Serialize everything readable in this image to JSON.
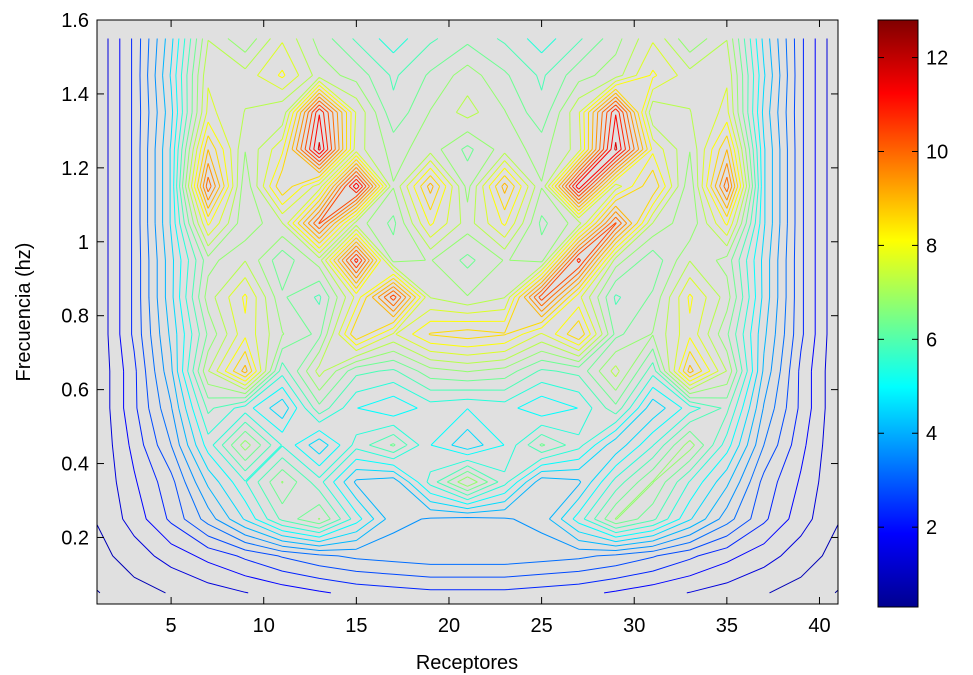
{
  "chart_data": {
    "type": "heatmap",
    "variant": "contour",
    "title": "",
    "xlabel": "Receptores",
    "ylabel": "Frecuencia (hz)",
    "xlim": [
      1,
      41
    ],
    "ylim": [
      0.02,
      1.6
    ],
    "x_ticks": [
      5,
      10,
      15,
      20,
      25,
      30,
      35,
      40
    ],
    "y_ticks": [
      0.2,
      0.4,
      0.6,
      0.8,
      1,
      1.2,
      1.4,
      1.6
    ],
    "y_tick_labels": [
      "0.2",
      "0.4",
      "0.6",
      "0.8",
      "1",
      "1.2",
      "1.4",
      "1.6"
    ],
    "grid": false,
    "background_color": "#e0e0e0",
    "colormap": "jet",
    "colorbar": {
      "range": [
        0.3,
        12.8
      ],
      "ticks": [
        2,
        4,
        6,
        8,
        10,
        12
      ]
    },
    "z_grid": {
      "description": "contour levels of amplitude over receptor index and frequency (approximate)",
      "x": [
        1,
        3,
        5,
        7,
        9,
        11,
        13,
        15,
        17,
        19,
        21,
        23,
        25,
        27,
        29,
        31,
        33,
        35,
        37,
        39,
        41
      ],
      "y": [
        0.05,
        0.15,
        0.25,
        0.35,
        0.45,
        0.55,
        0.65,
        0.75,
        0.85,
        0.95,
        1.05,
        1.15,
        1.25,
        1.35,
        1.45,
        1.55
      ],
      "z": [
        [
          0.5,
          0.8,
          1.0,
          1.2,
          1.4,
          1.6,
          1.8,
          2.0,
          2.1,
          2.2,
          2.2,
          2.2,
          2.1,
          2.0,
          1.8,
          1.6,
          1.4,
          1.2,
          1.0,
          0.8,
          0.5
        ],
        [
          0.8,
          1.2,
          1.6,
          2.0,
          2.4,
          2.8,
          3.1,
          3.3,
          3.4,
          3.5,
          3.5,
          3.5,
          3.4,
          3.3,
          3.1,
          2.8,
          2.4,
          2.0,
          1.6,
          1.2,
          0.8
        ],
        [
          1.0,
          1.6,
          2.4,
          3.4,
          4.6,
          6.0,
          6.8,
          5.2,
          3.8,
          3.6,
          3.5,
          3.6,
          3.8,
          5.2,
          6.8,
          6.0,
          4.6,
          3.4,
          2.4,
          1.6,
          1.0
        ],
        [
          1.0,
          1.8,
          2.6,
          4.2,
          5.4,
          6.8,
          5.6,
          4.0,
          3.8,
          5.6,
          7.2,
          5.6,
          3.8,
          4.0,
          5.6,
          6.8,
          5.4,
          4.2,
          2.6,
          1.8,
          1.0
        ],
        [
          1.0,
          2.0,
          3.2,
          5.2,
          7.0,
          5.4,
          4.2,
          5.6,
          6.4,
          5.0,
          4.2,
          5.0,
          6.4,
          5.6,
          4.2,
          5.4,
          7.0,
          5.2,
          3.2,
          2.0,
          1.0
        ],
        [
          1.0,
          2.2,
          3.6,
          6.0,
          5.2,
          4.2,
          6.2,
          5.0,
          4.6,
          5.2,
          5.0,
          5.2,
          4.6,
          5.0,
          6.2,
          4.2,
          5.2,
          6.0,
          3.6,
          2.2,
          1.0
        ],
        [
          1.0,
          2.2,
          4.0,
          7.2,
          9.2,
          5.6,
          7.4,
          6.0,
          5.8,
          6.6,
          6.8,
          6.6,
          5.8,
          6.0,
          7.4,
          5.6,
          9.2,
          7.2,
          4.0,
          2.2,
          1.0
        ],
        [
          1.0,
          2.4,
          4.2,
          6.4,
          8.0,
          6.8,
          6.2,
          9.0,
          7.6,
          8.6,
          8.8,
          8.6,
          7.6,
          9.0,
          6.2,
          6.8,
          8.0,
          6.4,
          4.2,
          2.4,
          1.0
        ],
        [
          1.0,
          2.4,
          4.4,
          7.0,
          8.2,
          6.4,
          5.8,
          7.8,
          10.6,
          7.2,
          6.8,
          7.2,
          10.6,
          7.8,
          5.8,
          6.4,
          8.2,
          7.0,
          4.4,
          2.4,
          1.0
        ],
        [
          1.0,
          2.4,
          4.4,
          6.6,
          7.2,
          6.0,
          7.0,
          11.0,
          6.6,
          6.8,
          6.2,
          6.8,
          6.6,
          11.0,
          7.0,
          6.0,
          7.2,
          6.6,
          4.4,
          2.4,
          1.0
        ],
        [
          1.0,
          2.4,
          4.6,
          8.2,
          6.4,
          7.2,
          10.4,
          7.0,
          6.2,
          8.2,
          7.0,
          8.2,
          6.2,
          7.0,
          10.4,
          7.2,
          6.4,
          8.2,
          4.6,
          2.4,
          1.0
        ],
        [
          1.0,
          2.4,
          4.6,
          10.2,
          6.4,
          9.0,
          7.4,
          11.6,
          6.8,
          9.2,
          6.6,
          9.2,
          6.8,
          11.6,
          7.4,
          9.0,
          6.4,
          10.2,
          4.6,
          2.4,
          1.0
        ],
        [
          1.0,
          2.4,
          4.6,
          9.0,
          6.8,
          8.0,
          11.8,
          7.4,
          6.6,
          7.0,
          6.2,
          7.0,
          6.6,
          7.4,
          11.8,
          8.0,
          6.8,
          9.0,
          4.6,
          2.4,
          1.0
        ],
        [
          1.0,
          2.4,
          4.4,
          7.8,
          7.2,
          6.8,
          11.2,
          7.6,
          6.0,
          6.8,
          7.4,
          6.8,
          6.0,
          7.6,
          11.2,
          6.8,
          7.2,
          7.8,
          4.4,
          2.4,
          1.0
        ],
        [
          1.0,
          2.4,
          4.6,
          7.6,
          7.4,
          8.2,
          7.0,
          6.6,
          5.8,
          6.4,
          7.0,
          6.4,
          5.8,
          6.6,
          7.0,
          8.2,
          7.4,
          7.6,
          4.6,
          2.4,
          1.0
        ],
        [
          1.0,
          2.4,
          4.4,
          7.2,
          6.4,
          7.6,
          6.6,
          5.8,
          5.2,
          5.8,
          6.2,
          5.8,
          5.2,
          5.8,
          6.6,
          7.6,
          6.4,
          7.2,
          4.4,
          2.4,
          1.0
        ]
      ]
    }
  }
}
